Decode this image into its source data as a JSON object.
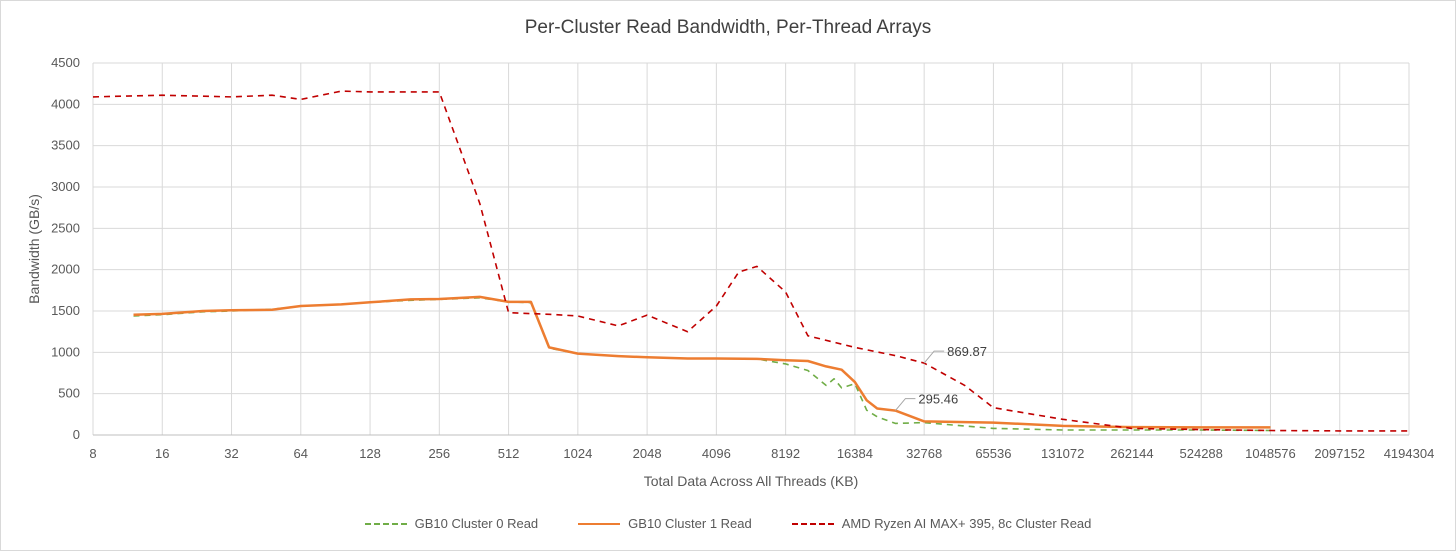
{
  "chart_data": {
    "type": "line",
    "title": "Per-Cluster Read Bandwidth, Per-Thread Arrays",
    "xlabel": "Total Data Across All Threads (KB)",
    "ylabel": "Bandwidth (GB/s)",
    "x_scale": "log2",
    "xlim": [
      8,
      4194304
    ],
    "ylim": [
      0,
      4500
    ],
    "x_ticks": [
      "8",
      "16",
      "32",
      "64",
      "128",
      "256",
      "512",
      "1024",
      "2048",
      "4096",
      "8192",
      "16384",
      "32768",
      "65536",
      "131072",
      "262144",
      "524288",
      "1048576",
      "2097152",
      "4194304"
    ],
    "y_ticks": [
      "0",
      "500",
      "1000",
      "1500",
      "2000",
      "2500",
      "3000",
      "3500",
      "4000",
      "4500"
    ],
    "grid": true,
    "legend_position": "bottom",
    "series": [
      {
        "name": "GB10 Cluster 0 Read",
        "color": "#70ad47",
        "dash": "dashed",
        "points": [
          [
            12,
            1440
          ],
          [
            16,
            1455
          ],
          [
            24,
            1490
          ],
          [
            32,
            1500
          ],
          [
            48,
            1520
          ],
          [
            64,
            1560
          ],
          [
            96,
            1580
          ],
          [
            128,
            1605
          ],
          [
            192,
            1630
          ],
          [
            256,
            1640
          ],
          [
            384,
            1660
          ],
          [
            512,
            1610
          ],
          [
            640,
            1600
          ],
          [
            768,
            1050
          ],
          [
            1024,
            985
          ],
          [
            1536,
            955
          ],
          [
            2048,
            940
          ],
          [
            3072,
            925
          ],
          [
            4096,
            925
          ],
          [
            6144,
            920
          ],
          [
            8192,
            860
          ],
          [
            10240,
            780
          ],
          [
            12288,
            600
          ],
          [
            13312,
            680
          ],
          [
            14336,
            570
          ],
          [
            16384,
            620
          ],
          [
            18432,
            300
          ],
          [
            20480,
            220
          ],
          [
            24576,
            140
          ],
          [
            32768,
            150
          ],
          [
            65536,
            80
          ],
          [
            131072,
            60
          ],
          [
            262144,
            60
          ],
          [
            524288,
            60
          ],
          [
            1048576,
            55
          ]
        ]
      },
      {
        "name": "GB10 Cluster 1 Read",
        "color": "#ed7d31",
        "dash": "solid",
        "points": [
          [
            12,
            1455
          ],
          [
            16,
            1465
          ],
          [
            24,
            1500
          ],
          [
            32,
            1510
          ],
          [
            48,
            1515
          ],
          [
            64,
            1560
          ],
          [
            96,
            1580
          ],
          [
            128,
            1605
          ],
          [
            192,
            1640
          ],
          [
            256,
            1645
          ],
          [
            384,
            1670
          ],
          [
            512,
            1610
          ],
          [
            640,
            1610
          ],
          [
            768,
            1060
          ],
          [
            1024,
            985
          ],
          [
            1536,
            955
          ],
          [
            2048,
            940
          ],
          [
            3072,
            925
          ],
          [
            4096,
            925
          ],
          [
            6144,
            920
          ],
          [
            8192,
            905
          ],
          [
            10240,
            895
          ],
          [
            12288,
            830
          ],
          [
            14336,
            790
          ],
          [
            16384,
            640
          ],
          [
            18432,
            420
          ],
          [
            20480,
            320
          ],
          [
            24576,
            295.46
          ],
          [
            32768,
            165
          ],
          [
            65536,
            150
          ],
          [
            131072,
            110
          ],
          [
            262144,
            95
          ],
          [
            524288,
            92
          ],
          [
            1048576,
            92
          ]
        ]
      },
      {
        "name": "AMD Ryzen AI MAX+ 395, 8c Cluster Read",
        "color": "#c00000",
        "dash": "dashed",
        "points": [
          [
            8,
            4090
          ],
          [
            16,
            4110
          ],
          [
            32,
            4090
          ],
          [
            48,
            4110
          ],
          [
            64,
            4060
          ],
          [
            96,
            4160
          ],
          [
            128,
            4150
          ],
          [
            192,
            4150
          ],
          [
            256,
            4150
          ],
          [
            384,
            2800
          ],
          [
            512,
            1480
          ],
          [
            768,
            1460
          ],
          [
            1024,
            1440
          ],
          [
            1536,
            1320
          ],
          [
            2048,
            1450
          ],
          [
            3072,
            1250
          ],
          [
            4096,
            1560
          ],
          [
            5120,
            1970
          ],
          [
            6144,
            2040
          ],
          [
            8192,
            1730
          ],
          [
            10240,
            1200
          ],
          [
            16384,
            1060
          ],
          [
            24576,
            960
          ],
          [
            32768,
            869.87
          ],
          [
            49152,
            600
          ],
          [
            65536,
            330
          ],
          [
            131072,
            190
          ],
          [
            262144,
            80
          ],
          [
            524288,
            65
          ],
          [
            1048576,
            55
          ],
          [
            2097152,
            50
          ],
          [
            4194304,
            50
          ]
        ]
      }
    ],
    "annotations": [
      {
        "text": "869.87",
        "series": "AMD Ryzen AI MAX+ 395, 8c Cluster Read",
        "x": 32768,
        "y": 869.87
      },
      {
        "text": "295.46",
        "series": "GB10 Cluster 1 Read",
        "x": 24576,
        "y": 295.46
      }
    ]
  }
}
